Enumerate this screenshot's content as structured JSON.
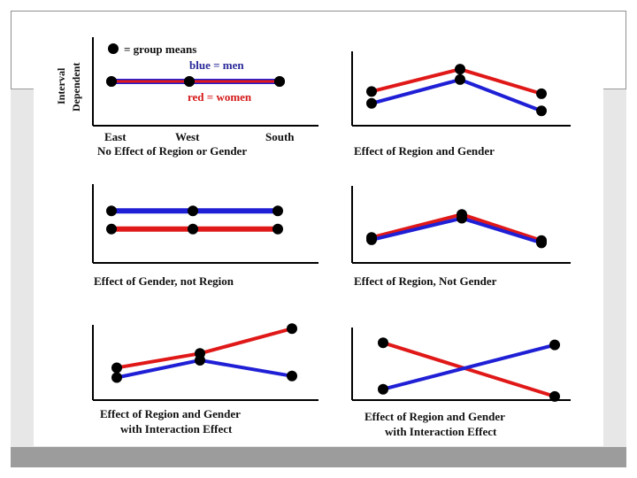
{
  "colors": {
    "men": "#1f1fd6",
    "women": "#e01818",
    "marker": "#000000",
    "axis": "#000000",
    "frame": "#8f8f8f",
    "background_band": "#e7e7e7",
    "footer_bar": "#9c9c9c"
  },
  "chart_data": [
    {
      "type": "line",
      "title": "No Effect of Region or Gender",
      "ylabel": "Interval Dependent",
      "categories": [
        "East",
        "West",
        "South"
      ],
      "legend": {
        "marker": "= group means",
        "men": "blue = men",
        "women": "red = women"
      },
      "series": [
        {
          "name": "men",
          "color": "blue",
          "values": [
            5,
            5,
            5
          ]
        },
        {
          "name": "women",
          "color": "red",
          "values": [
            5,
            5,
            5
          ]
        }
      ]
    },
    {
      "type": "line",
      "title": "Effect of Region and Gender",
      "categories": [
        "",
        "",
        ""
      ],
      "series": [
        {
          "name": "men",
          "color": "blue",
          "values": [
            3.0,
            6.2,
            2.0
          ]
        },
        {
          "name": "women",
          "color": "red",
          "values": [
            4.6,
            7.6,
            4.3
          ]
        }
      ]
    },
    {
      "type": "line",
      "title": "Effect of Gender, not Region",
      "categories": [
        "",
        "",
        ""
      ],
      "series": [
        {
          "name": "men",
          "color": "blue",
          "values": [
            6.6,
            6.6,
            6.6
          ]
        },
        {
          "name": "women",
          "color": "red",
          "values": [
            4.3,
            4.3,
            4.3
          ]
        }
      ]
    },
    {
      "type": "line",
      "title": "Effect of Region, Not Gender",
      "categories": [
        "",
        "",
        ""
      ],
      "series": [
        {
          "name": "men",
          "color": "blue",
          "values": [
            3.0,
            5.8,
            2.6
          ]
        },
        {
          "name": "women",
          "color": "red",
          "values": [
            3.3,
            6.3,
            2.9
          ]
        }
      ]
    },
    {
      "type": "line",
      "title": "Effect of Region and Gender with Interaction Effect",
      "categories": [
        "",
        "",
        ""
      ],
      "series": [
        {
          "name": "men",
          "color": "blue",
          "values": [
            3.0,
            5.3,
            3.2
          ]
        },
        {
          "name": "women",
          "color": "red",
          "values": [
            4.3,
            6.2,
            9.5
          ]
        }
      ]
    },
    {
      "type": "line",
      "title": "Effect of Region and Gender with Interaction Effect",
      "categories": [
        "",
        "",
        ""
      ],
      "series": [
        {
          "name": "men",
          "color": "blue",
          "values": [
            1.5,
            null,
            7.6
          ]
        },
        {
          "name": "women",
          "color": "red",
          "values": [
            7.9,
            null,
            0.5
          ]
        }
      ]
    }
  ]
}
